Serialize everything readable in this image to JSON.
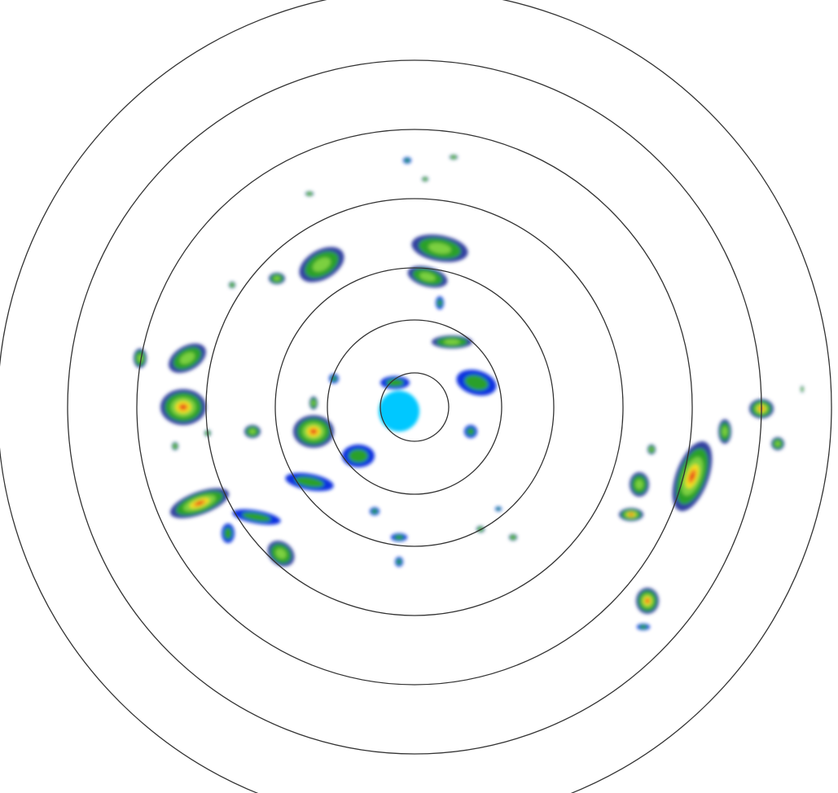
{
  "radar": {
    "ring_color": "#333333",
    "ring_count": 7,
    "palette": {
      "light_blue": "#00c8ff",
      "blue": "#1030e0",
      "dark_blue": "#3040a0",
      "green": "#2ca02c",
      "light_green": "#7cd040",
      "yellow": "#f0e020",
      "orange": "#f08020",
      "red": "#e02010"
    }
  }
}
